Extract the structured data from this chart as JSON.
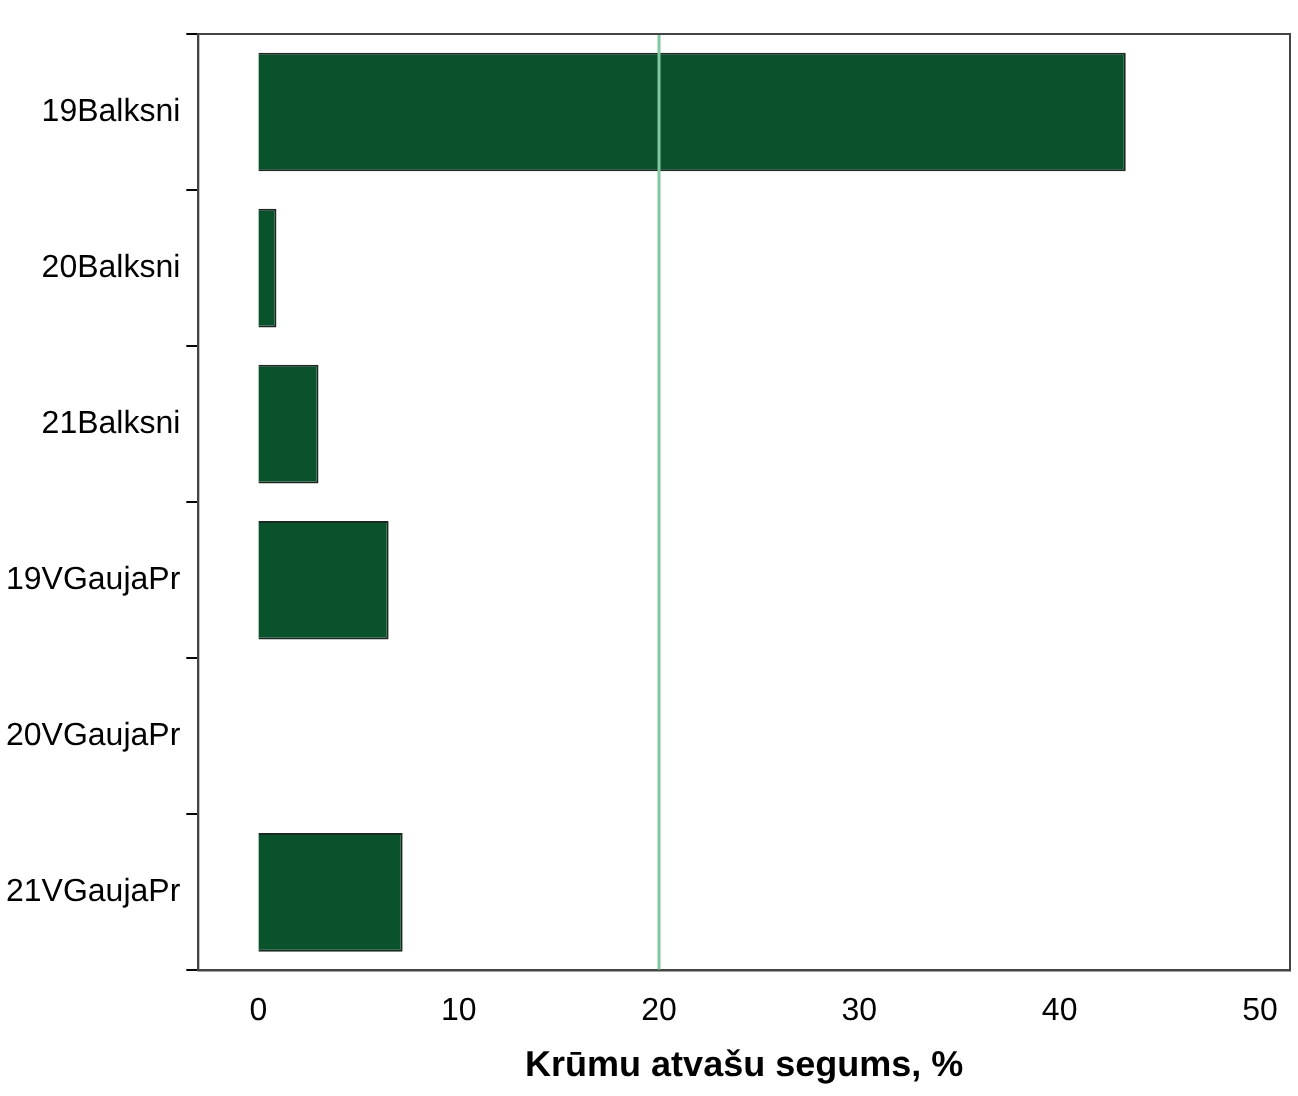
{
  "chart_data": {
    "type": "bar",
    "orientation": "horizontal",
    "xlabel": "Krūmu atvašu segums, %",
    "categories": [
      "19Balksni",
      "20Balksni",
      "21Balksni",
      "19VGaujaPr",
      "20VGaujaPr",
      "21VGaujaPr"
    ],
    "values": [
      43.3,
      0.9,
      3.0,
      6.5,
      0,
      7.2
    ],
    "color": "#0a522c",
    "xlim": [
      -3,
      51.5
    ],
    "xticks": [
      0,
      10,
      20,
      30,
      40,
      50
    ],
    "grid": false,
    "legend": false,
    "ref_lines": [
      {
        "axis": "x",
        "value": 20,
        "color": "#7fc8a0"
      }
    ]
  }
}
